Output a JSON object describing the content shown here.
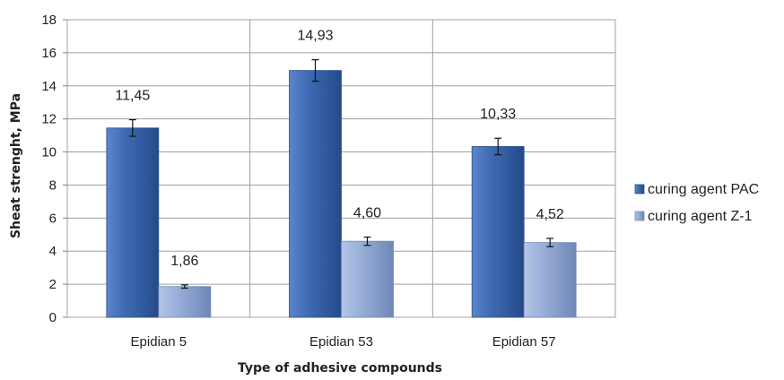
{
  "chart_data": {
    "type": "bar",
    "title": "",
    "xlabel": "Type of adhesive compounds",
    "ylabel": "Sheat strenght, MPa",
    "categories": [
      "Epidian 5",
      "Epidian 53",
      "Epidian 57"
    ],
    "series": [
      {
        "name": "curing agent PAC",
        "values": [
          11.45,
          14.93,
          10.33
        ],
        "labels": [
          "11,45",
          "14,93",
          "10,33"
        ],
        "errors": [
          0.5,
          0.65,
          0.5
        ],
        "color": "#3a64ad"
      },
      {
        "name": "curing agent Z-1",
        "values": [
          1.86,
          4.6,
          4.52
        ],
        "labels": [
          "1,86",
          "4,60",
          "4,52"
        ],
        "errors": [
          0.1,
          0.25,
          0.25
        ],
        "color": "#8fa6d2"
      }
    ],
    "ylim": [
      0,
      18
    ],
    "yticks": [
      "0",
      "2",
      "4",
      "6",
      "8",
      "10",
      "12",
      "14",
      "16",
      "18"
    ],
    "grid": true,
    "legend_position": "right"
  }
}
